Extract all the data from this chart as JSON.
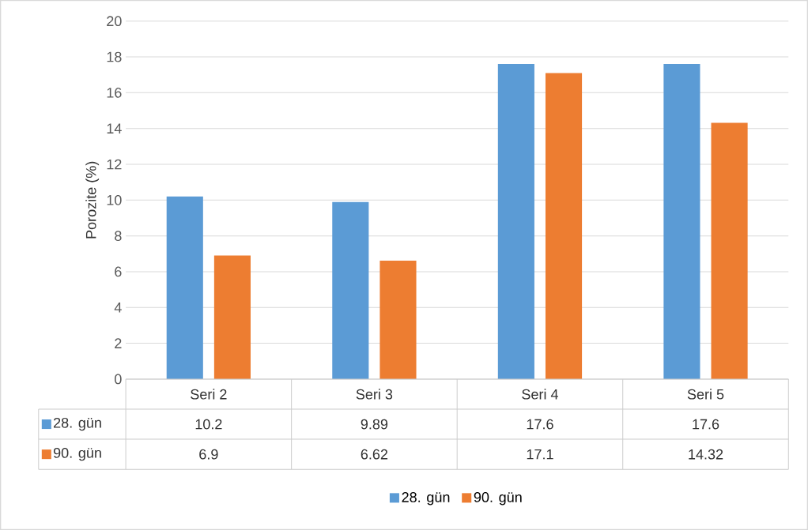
{
  "chart_data": {
    "type": "bar",
    "ylabel": "Porozite (%)",
    "categories": [
      "Seri 2",
      "Seri 3",
      "Seri 4",
      "Seri 5"
    ],
    "series": [
      {
        "name": "28. gün",
        "color": "#5b9bd5",
        "values": [
          10.2,
          9.89,
          17.6,
          17.6
        ]
      },
      {
        "name": "90. gün",
        "color": "#ed7d31",
        "values": [
          6.9,
          6.62,
          17.1,
          14.32
        ]
      }
    ],
    "ylim": [
      0,
      20
    ],
    "yticks": [
      0,
      2,
      4,
      6,
      8,
      10,
      12,
      14,
      16,
      18,
      20
    ],
    "grid": "y",
    "legend": "bottom",
    "data_labels": true
  }
}
